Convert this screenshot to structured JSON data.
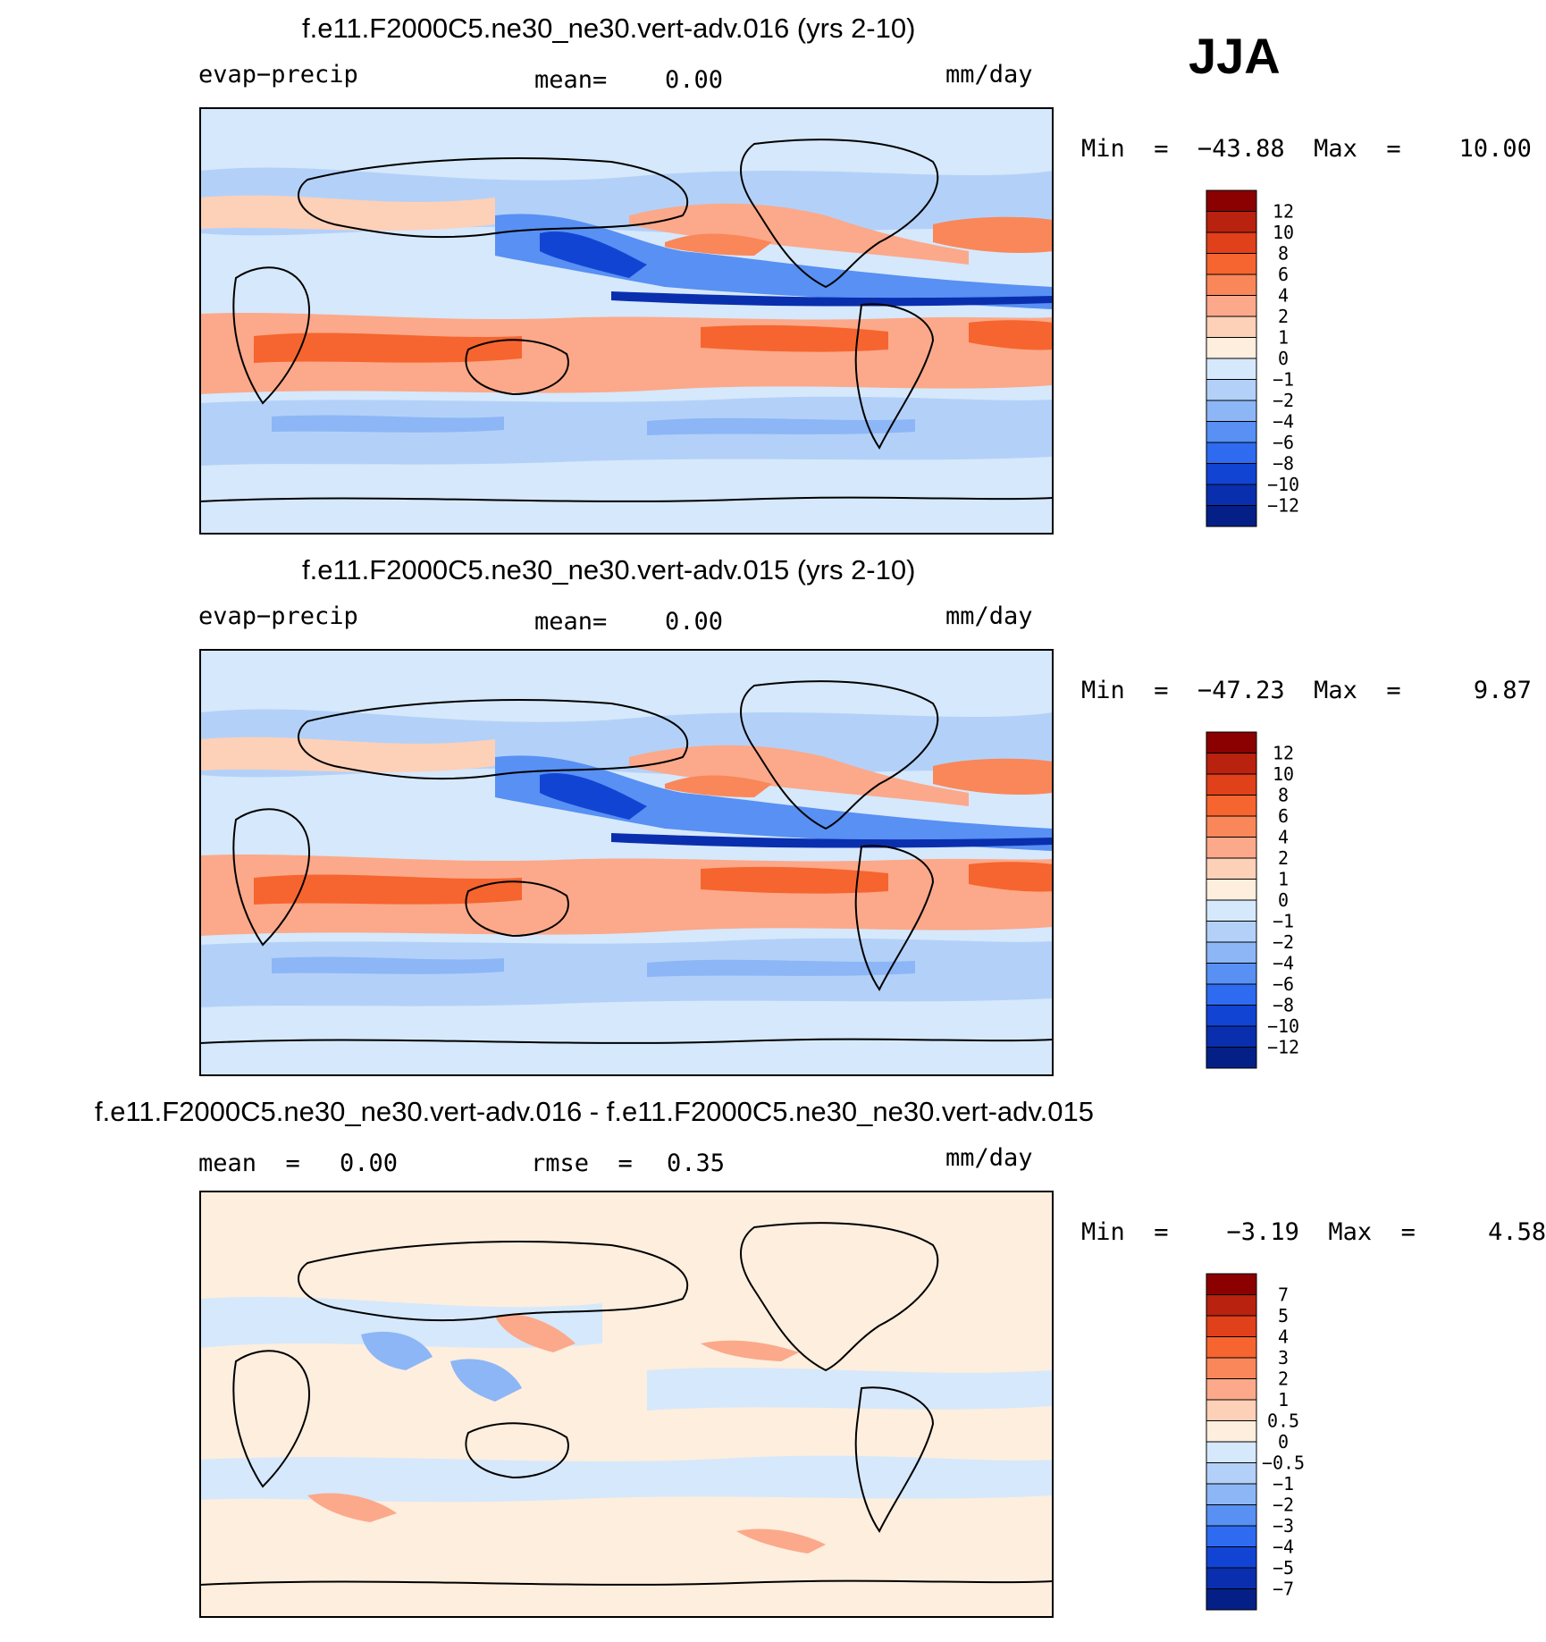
{
  "season": "JJA",
  "units_label": "mm/day",
  "panels": [
    {
      "title": "f.e11.F2000C5.ne30_ne30.vert-adv.016 (yrs 2-10)",
      "left_label": "evap−precip",
      "mean_label": "mean=",
      "mean_value": "0.00",
      "minmax": "Min  =  −43.88  Max  =    10.00",
      "colorbar": {
        "labels": [
          "12",
          "10",
          "8",
          "6",
          "4",
          "2",
          "1",
          "0",
          "−1",
          "−2",
          "−4",
          "−6",
          "−8",
          "−10",
          "−12"
        ],
        "colors": [
          "#8b0000",
          "#b8220e",
          "#e0401a",
          "#f6652f",
          "#f9875a",
          "#fba98a",
          "#fdd0b8",
          "#fdeede",
          "#d6e8fb",
          "#b3d1f8",
          "#8db6f6",
          "#5890f3",
          "#2e6bf0",
          "#1244d4",
          "#0a2fae",
          "#041f86"
        ]
      }
    },
    {
      "title": "f.e11.F2000C5.ne30_ne30.vert-adv.015 (yrs 2-10)",
      "left_label": "evap−precip",
      "mean_label": "mean=",
      "mean_value": "0.00",
      "minmax": "Min  =  −47.23  Max  =     9.87",
      "colorbar": {
        "labels": [
          "12",
          "10",
          "8",
          "6",
          "4",
          "2",
          "1",
          "0",
          "−1",
          "−2",
          "−4",
          "−6",
          "−8",
          "−10",
          "−12"
        ],
        "colors": [
          "#8b0000",
          "#b8220e",
          "#e0401a",
          "#f6652f",
          "#f9875a",
          "#fba98a",
          "#fdd0b8",
          "#fdeede",
          "#d6e8fb",
          "#b3d1f8",
          "#8db6f6",
          "#5890f3",
          "#2e6bf0",
          "#1244d4",
          "#0a2fae",
          "#041f86"
        ]
      }
    },
    {
      "title": "f.e11.F2000C5.ne30_ne30.vert-adv.016 - f.e11.F2000C5.ne30_ne30.vert-adv.015",
      "mean_label": "mean  =",
      "mean_value": "0.00",
      "rmse_label": "rmse  =",
      "rmse_value": "0.35",
      "minmax": "Min  =    −3.19  Max  =     4.58",
      "colorbar": {
        "labels": [
          "7",
          "5",
          "4",
          "3",
          "2",
          "1",
          "0.5",
          "0",
          "−0.5",
          "−1",
          "−2",
          "−3",
          "−4",
          "−5",
          "−7"
        ],
        "colors": [
          "#8b0000",
          "#b8220e",
          "#e0401a",
          "#f6652f",
          "#f9875a",
          "#fba98a",
          "#fdd0b8",
          "#fdeede",
          "#d6e8fb",
          "#b3d1f8",
          "#8db6f6",
          "#5890f3",
          "#2e6bf0",
          "#1244d4",
          "#0a2fae",
          "#041f86"
        ]
      }
    }
  ],
  "chart_data": [
    {
      "type": "heatmap",
      "title": "f.e11.F2000C5.ne30_ne30.vert-adv.016 (yrs 2-10)",
      "variable": "evap−precip",
      "units": "mm/day",
      "mean": 0.0,
      "min": -43.88,
      "max": 10.0,
      "contour_levels": [
        -12,
        -10,
        -8,
        -6,
        -4,
        -2,
        -1,
        0,
        1,
        2,
        4,
        6,
        8,
        10,
        12
      ],
      "projection": "cylindrical equidistant, Pacific-centered"
    },
    {
      "type": "heatmap",
      "title": "f.e11.F2000C5.ne30_ne30.vert-adv.015 (yrs 2-10)",
      "variable": "evap−precip",
      "units": "mm/day",
      "mean": 0.0,
      "min": -47.23,
      "max": 9.87,
      "contour_levels": [
        -12,
        -10,
        -8,
        -6,
        -4,
        -2,
        -1,
        0,
        1,
        2,
        4,
        6,
        8,
        10,
        12
      ],
      "projection": "cylindrical equidistant, Pacific-centered"
    },
    {
      "type": "heatmap",
      "title": "f.e11.F2000C5.ne30_ne30.vert-adv.016 - f.e11.F2000C5.ne30_ne30.vert-adv.015",
      "units": "mm/day",
      "mean": 0.0,
      "rmse": 0.35,
      "min": -3.19,
      "max": 4.58,
      "contour_levels": [
        -7,
        -5,
        -4,
        -3,
        -2,
        -1,
        -0.5,
        0,
        0.5,
        1,
        2,
        3,
        4,
        5,
        7
      ],
      "projection": "cylindrical equidistant, Pacific-centered"
    }
  ]
}
